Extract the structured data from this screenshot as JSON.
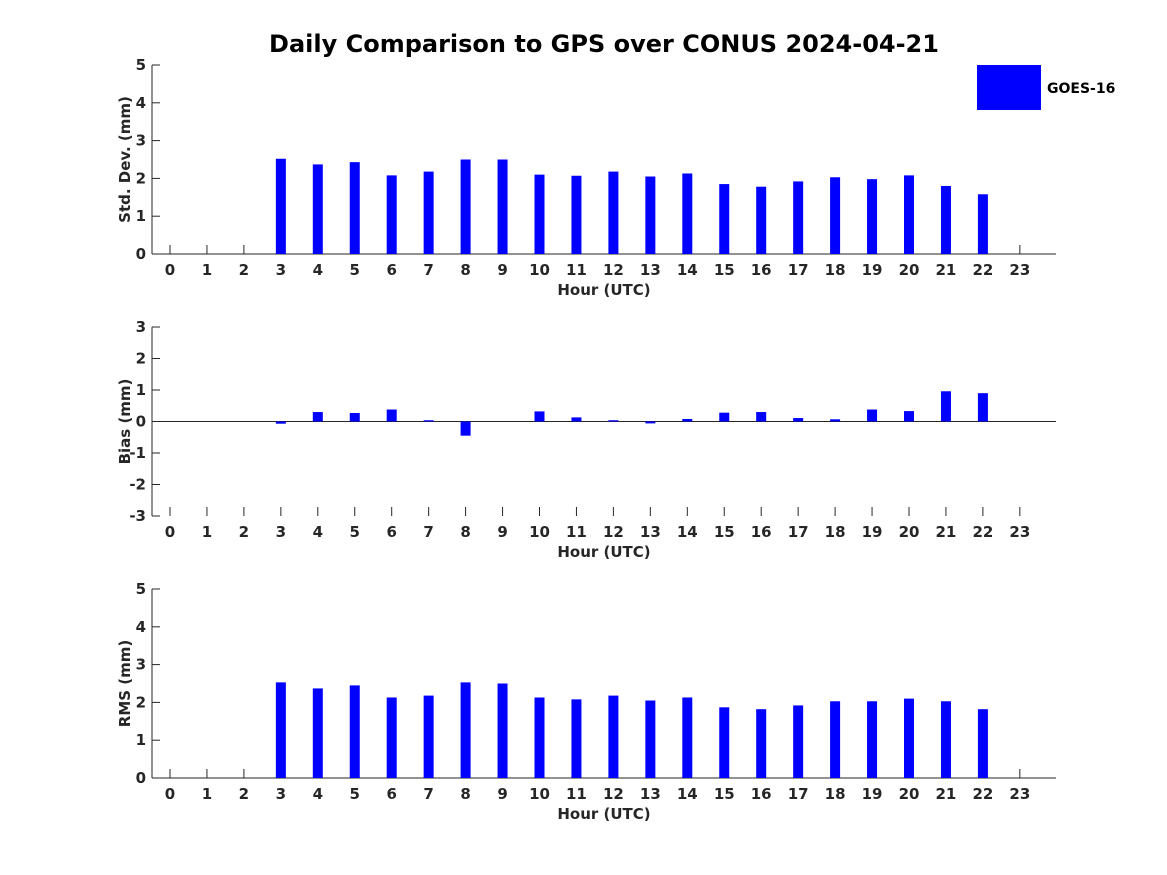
{
  "title": "Daily Comparison to GPS over CONUS 2024-04-21",
  "legend": {
    "label": "GOES-16",
    "color": "#0000ff"
  },
  "chart_data": [
    {
      "type": "bar",
      "ylabel": "Std. Dev. (mm)",
      "xlabel": "Hour (UTC)",
      "ylim": [
        0,
        5
      ],
      "yticks": [
        "0",
        "1",
        "2",
        "3",
        "4",
        "5"
      ],
      "categories": [
        "0",
        "1",
        "2",
        "3",
        "4",
        "5",
        "6",
        "7",
        "8",
        "9",
        "10",
        "11",
        "12",
        "13",
        "14",
        "15",
        "16",
        "17",
        "18",
        "19",
        "20",
        "21",
        "22",
        "23"
      ],
      "series": [
        {
          "name": "GOES-16",
          "values": [
            null,
            null,
            null,
            2.52,
            2.37,
            2.43,
            2.08,
            2.18,
            2.5,
            2.5,
            2.1,
            2.07,
            2.18,
            2.05,
            2.13,
            1.85,
            1.78,
            1.92,
            2.03,
            1.98,
            2.08,
            1.8,
            1.58,
            null
          ]
        }
      ]
    },
    {
      "type": "bar",
      "ylabel": "Bias (mm)",
      "xlabel": "Hour (UTC)",
      "ylim": [
        -3,
        3
      ],
      "yticks": [
        "-3",
        "-2",
        "-1",
        "0",
        "1",
        "2",
        "3"
      ],
      "categories": [
        "0",
        "1",
        "2",
        "3",
        "4",
        "5",
        "6",
        "7",
        "8",
        "9",
        "10",
        "11",
        "12",
        "13",
        "14",
        "15",
        "16",
        "17",
        "18",
        "19",
        "20",
        "21",
        "22",
        "23"
      ],
      "series": [
        {
          "name": "GOES-16",
          "values": [
            null,
            null,
            null,
            -0.07,
            0.3,
            0.27,
            0.38,
            0.04,
            -0.45,
            0.0,
            0.32,
            0.13,
            0.04,
            -0.06,
            0.08,
            0.28,
            0.3,
            0.11,
            0.07,
            0.38,
            0.33,
            0.96,
            0.9,
            null
          ]
        }
      ]
    },
    {
      "type": "bar",
      "ylabel": "RMS (mm)",
      "xlabel": "Hour (UTC)",
      "ylim": [
        0,
        5
      ],
      "yticks": [
        "0",
        "1",
        "2",
        "3",
        "4",
        "5"
      ],
      "categories": [
        "0",
        "1",
        "2",
        "3",
        "4",
        "5",
        "6",
        "7",
        "8",
        "9",
        "10",
        "11",
        "12",
        "13",
        "14",
        "15",
        "16",
        "17",
        "18",
        "19",
        "20",
        "21",
        "22",
        "23"
      ],
      "series": [
        {
          "name": "GOES-16",
          "values": [
            null,
            null,
            null,
            2.53,
            2.37,
            2.45,
            2.13,
            2.18,
            2.53,
            2.5,
            2.13,
            2.08,
            2.18,
            2.05,
            2.13,
            1.87,
            1.82,
            1.92,
            2.03,
            2.03,
            2.1,
            2.03,
            1.82,
            null
          ]
        }
      ]
    }
  ]
}
